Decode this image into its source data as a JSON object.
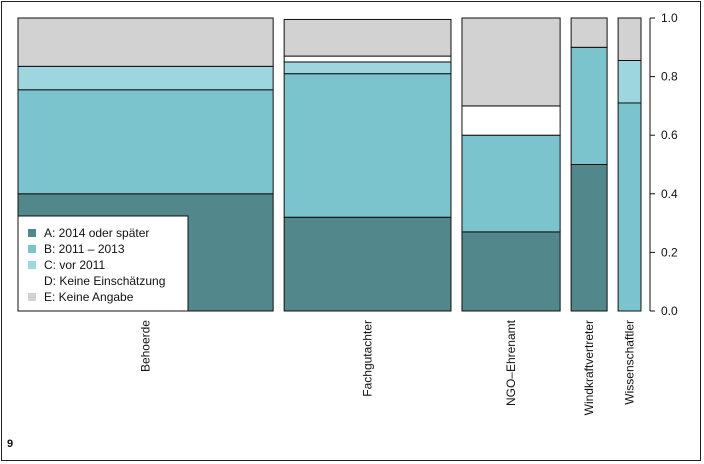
{
  "figure_number": "9",
  "chart_data": {
    "type": "bar",
    "subtype": "stacked-mosaic",
    "categories": [
      "Behoerde",
      "Fachgutachter",
      "NGO–Ehrenamt",
      "Windkraftvertreter",
      "Wissenschaftler"
    ],
    "relative_widths": [
      0.39,
      0.255,
      0.15,
      0.055,
      0.035
    ],
    "series": [
      {
        "name": "A: 2014 oder später",
        "color": "#52878b",
        "values": [
          0.4,
          0.32,
          0.27,
          0.5,
          0.0
        ]
      },
      {
        "name": "B: 2011 – 2013",
        "color": "#7cc4cd",
        "values": [
          0.355,
          0.49,
          0.33,
          0.4,
          0.71
        ]
      },
      {
        "name": "C: vor 2011",
        "color": "#9dd6de",
        "values": [
          0.08,
          0.04,
          0.0,
          0.0,
          0.145
        ]
      },
      {
        "name": "D: Keine Einschätzung",
        "color": "#ffffff",
        "values": [
          0.0,
          0.02,
          0.1,
          0.0,
          0.0
        ]
      },
      {
        "name": "E: Keine Angabe",
        "color": "#d2d2d2",
        "values": [
          0.165,
          0.125,
          0.3,
          0.1,
          0.145
        ]
      }
    ],
    "ylim": [
      0,
      1
    ],
    "yticks": [
      "0.0",
      "0.2",
      "0.4",
      "0.6",
      "0.8",
      "1.0"
    ],
    "y_axis_side": "right",
    "legend_position": "bottom-left",
    "grid": false
  }
}
